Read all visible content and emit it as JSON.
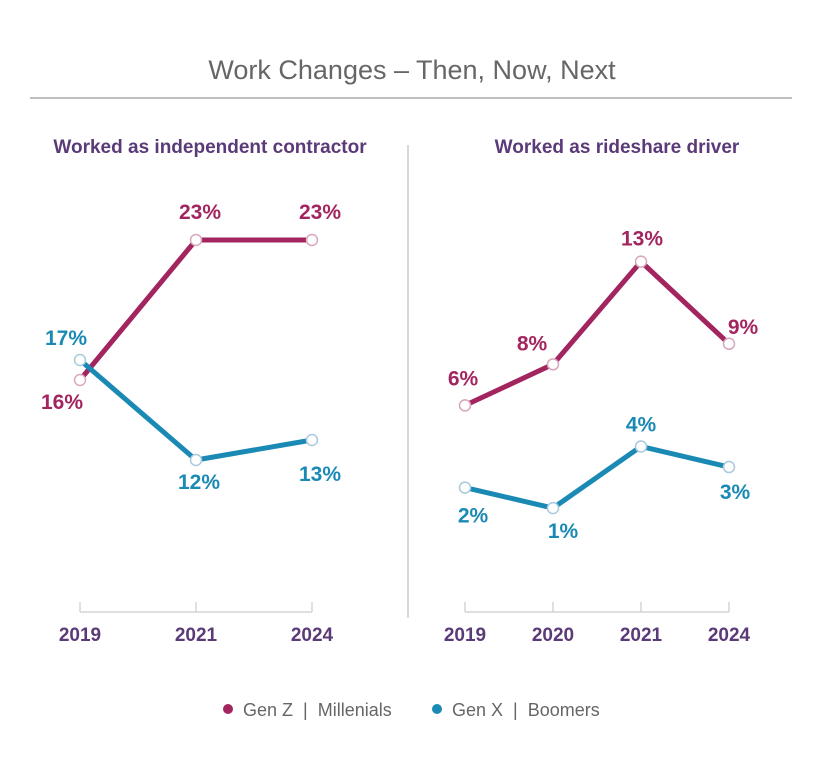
{
  "title": "Work Changes – Then, Now, Next",
  "colors": {
    "series_1": "#a3255f",
    "series_2": "#1a8ab5",
    "panel_title": "#5b3a78",
    "axis": "#cccccc",
    "text_gray": "#666666"
  },
  "legend": {
    "items": [
      {
        "label": "Gen Z  |  Millenials",
        "color": "#a3255f"
      },
      {
        "label": "Gen X  |  Boomers",
        "color": "#1a8ab5"
      }
    ]
  },
  "chart_data": [
    {
      "type": "line",
      "title": "Worked as independent contractor",
      "categories": [
        "2019",
        "2021",
        "2024"
      ],
      "series": [
        {
          "name": "Gen Z  |  Millenials",
          "values": [
            16,
            23,
            23
          ],
          "labels": [
            "16%",
            "23%",
            "23%"
          ]
        },
        {
          "name": "Gen X  |  Boomers",
          "values": [
            17,
            12,
            13
          ],
          "labels": [
            "17%",
            "12%",
            "13%"
          ]
        }
      ],
      "ylim": [
        6,
        25
      ]
    },
    {
      "type": "line",
      "title": "Worked as rideshare driver",
      "categories": [
        "2019",
        "2020",
        "2021",
        "2024"
      ],
      "series": [
        {
          "name": "Gen Z  |  Millenials",
          "values": [
            6,
            8,
            13,
            9
          ],
          "labels": [
            "6%",
            "8%",
            "13%",
            "9%"
          ]
        },
        {
          "name": "Gen X  |  Boomers",
          "values": [
            2,
            1,
            4,
            3
          ],
          "labels": [
            "2%",
            "1%",
            "4%",
            "3%"
          ]
        }
      ],
      "ylim": [
        -2.5,
        16
      ]
    }
  ]
}
